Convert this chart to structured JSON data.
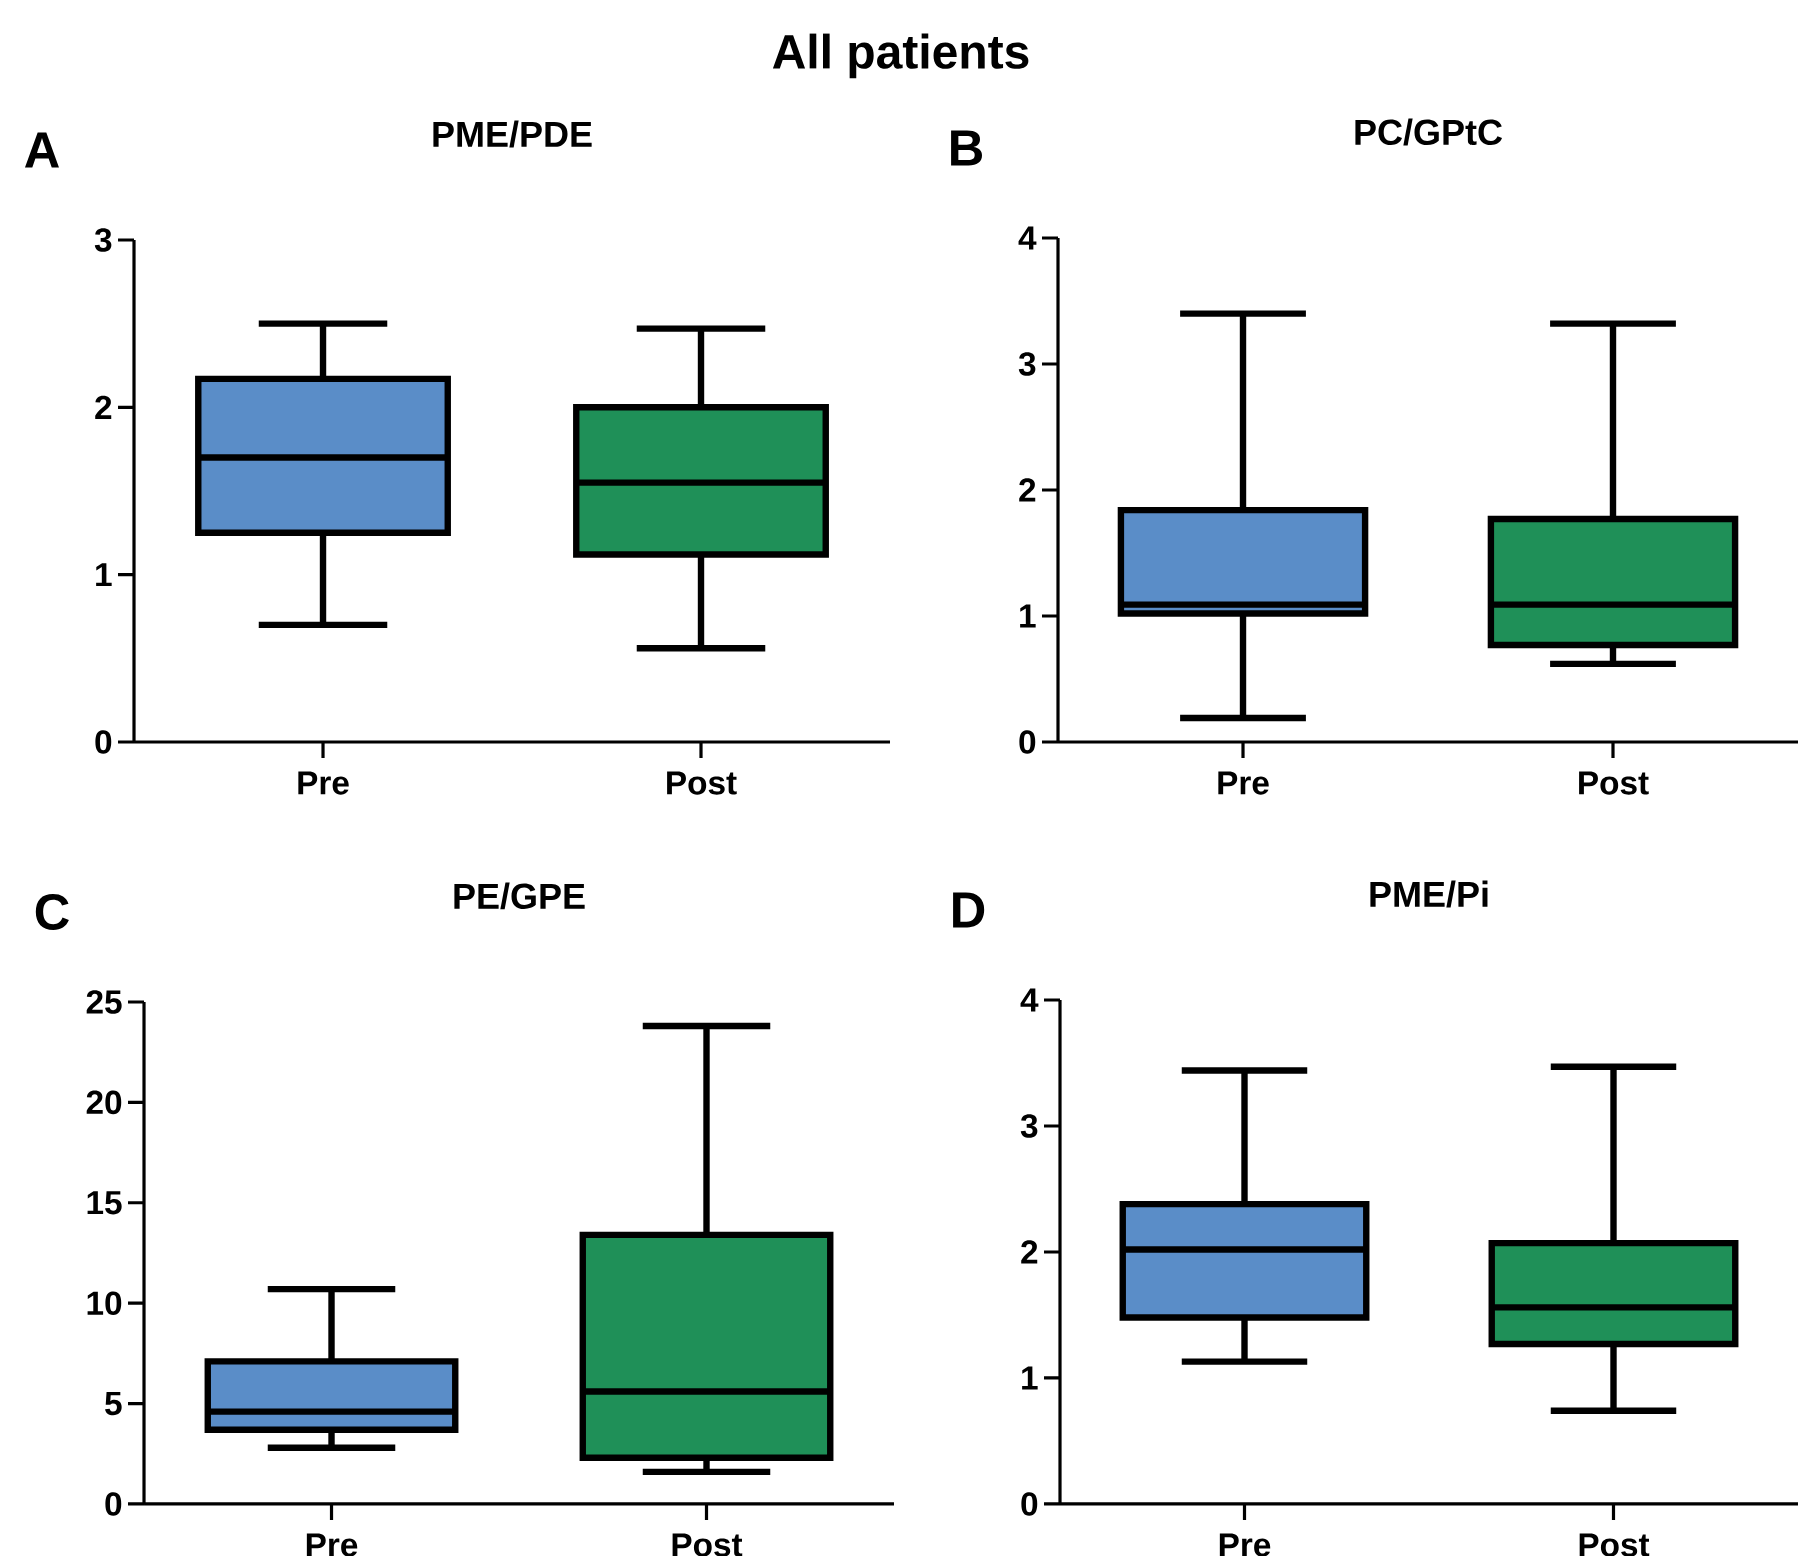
{
  "chart_data": [
    {
      "type": "box",
      "title": "PME/PDE",
      "annotations": [
        "All patients",
        "A"
      ],
      "categories": [
        "Pre",
        "Post"
      ],
      "colors": [
        "#5a8dc8",
        "#1f9058"
      ],
      "ylim": [
        0,
        3
      ],
      "yticks": [
        0,
        1,
        2,
        3
      ],
      "boxes": [
        {
          "low": 0.7,
          "q1": 1.25,
          "median": 1.7,
          "q3": 2.17,
          "high": 2.5
        },
        {
          "low": 0.56,
          "q1": 1.12,
          "median": 1.55,
          "q3": 2.0,
          "high": 2.47
        }
      ]
    },
    {
      "type": "box",
      "title": "PC/GPtC",
      "annotations": [
        "B"
      ],
      "categories": [
        "Pre",
        "Post"
      ],
      "colors": [
        "#5a8dc8",
        "#1f9058"
      ],
      "ylim": [
        0,
        4
      ],
      "yticks": [
        0,
        1,
        2,
        3,
        4
      ],
      "boxes": [
        {
          "low": 0.19,
          "q1": 1.02,
          "median": 1.09,
          "q3": 1.84,
          "high": 3.4
        },
        {
          "low": 0.62,
          "q1": 0.77,
          "median": 1.09,
          "q3": 1.77,
          "high": 3.32
        }
      ]
    },
    {
      "type": "box",
      "title": "PE/GPE",
      "annotations": [
        "C"
      ],
      "categories": [
        "Pre",
        "Post"
      ],
      "colors": [
        "#5a8dc8",
        "#1f9058"
      ],
      "ylim": [
        0,
        25
      ],
      "yticks": [
        0,
        5,
        10,
        15,
        20,
        25
      ],
      "boxes": [
        {
          "low": 2.8,
          "q1": 3.7,
          "median": 4.6,
          "q3": 7.1,
          "high": 10.7
        },
        {
          "low": 1.6,
          "q1": 2.3,
          "median": 5.6,
          "q3": 13.4,
          "high": 23.8
        }
      ]
    },
    {
      "type": "box",
      "title": "PME/Pi",
      "annotations": [
        "D"
      ],
      "categories": [
        "Pre",
        "Post"
      ],
      "colors": [
        "#5a8dc8",
        "#1f9058"
      ],
      "ylim": [
        0,
        4
      ],
      "yticks": [
        0,
        1,
        2,
        3,
        4
      ],
      "boxes": [
        {
          "low": 1.13,
          "q1": 1.48,
          "median": 2.02,
          "q3": 2.38,
          "high": 3.44
        },
        {
          "low": 0.74,
          "q1": 1.27,
          "median": 1.56,
          "q3": 2.07,
          "high": 3.47
        }
      ]
    }
  ]
}
